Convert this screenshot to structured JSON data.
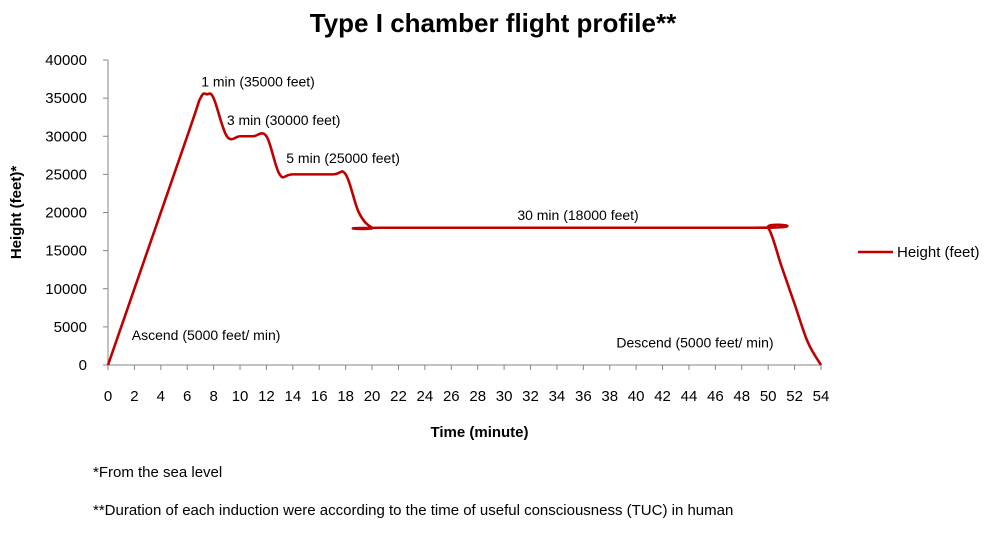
{
  "chart_data": {
    "type": "line",
    "title": "Type I chamber flight profile**",
    "xlabel": "Time (minute)",
    "ylabel": "Height (feet)*",
    "xlim": [
      0,
      54
    ],
    "ylim": [
      0,
      40000
    ],
    "x_ticks": [
      0,
      2,
      4,
      6,
      8,
      10,
      12,
      14,
      16,
      18,
      20,
      22,
      24,
      26,
      28,
      30,
      32,
      34,
      36,
      38,
      40,
      42,
      44,
      46,
      48,
      50,
      52,
      54
    ],
    "y_ticks": [
      0,
      5000,
      10000,
      15000,
      20000,
      25000,
      30000,
      35000,
      40000
    ],
    "grid": false,
    "legend_position": "right",
    "series": [
      {
        "name": "Height (feet)",
        "color": "#c00000",
        "points": [
          [
            0,
            0
          ],
          [
            6,
            30000
          ],
          [
            7,
            35000
          ],
          [
            7.5,
            35500
          ],
          [
            8,
            35000
          ],
          [
            9,
            30000
          ],
          [
            10,
            30000
          ],
          [
            11,
            30000
          ],
          [
            12,
            30000
          ],
          [
            13,
            25000
          ],
          [
            14,
            25000
          ],
          [
            17,
            25000
          ],
          [
            18,
            25000
          ],
          [
            19,
            20000
          ],
          [
            20,
            18000
          ],
          [
            21,
            18000
          ],
          [
            49,
            18000
          ],
          [
            50,
            18000
          ],
          [
            51,
            13000
          ],
          [
            52,
            8000
          ],
          [
            53,
            3000
          ],
          [
            54,
            0
          ]
        ]
      }
    ],
    "annotations": [
      {
        "text": "1 min (35000 feet)",
        "x": 7.5,
        "y": 36500
      },
      {
        "text": "3 min (30000 feet)",
        "x": 9,
        "y": 31500
      },
      {
        "text": "5 min (25000 feet)",
        "x": 13.5,
        "y": 26500
      },
      {
        "text": "30 min (18000  feet)",
        "x": 31,
        "y": 19000
      },
      {
        "text": "Ascend (5000 feet/ min)",
        "x": 1.8,
        "y": 3300
      },
      {
        "text": "Descend (5000 feet/ min)",
        "x": 38.5,
        "y": 2300
      }
    ]
  },
  "footnotes": [
    "*From the sea level",
    "**Duration of each induction were according to the time of useful consciousness (TUC) in human"
  ]
}
